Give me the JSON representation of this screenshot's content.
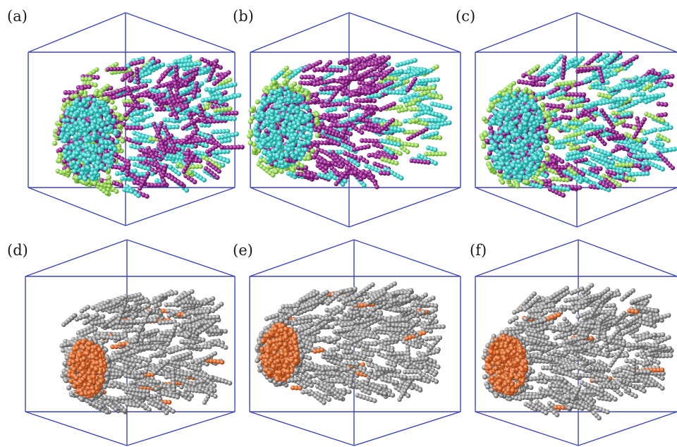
{
  "figure": {
    "panels": [
      {
        "label": "(a)",
        "style": "tricolor",
        "variant": 0
      },
      {
        "label": "(b)",
        "style": "tricolor",
        "variant": 1
      },
      {
        "label": "(c)",
        "style": "tricolor",
        "variant": 2
      },
      {
        "label": "(d)",
        "style": "gray-core",
        "variant": 0
      },
      {
        "label": "(e)",
        "style": "gray-core",
        "variant": 1
      },
      {
        "label": "(f)",
        "style": "gray-core",
        "variant": 2
      }
    ],
    "colors": {
      "box": "#3d46b8",
      "cyan": "#35c9c4",
      "green": "#8fd14f",
      "magenta": "#8c1f86",
      "gray": "#8a8a8a",
      "orange": "#d9642a"
    }
  }
}
